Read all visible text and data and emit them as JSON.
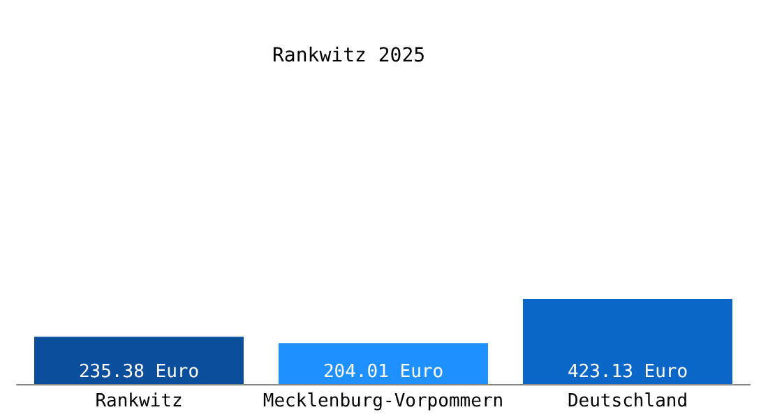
{
  "chart_data": {
    "type": "bar",
    "title": "Rankwitz 2025",
    "categories": [
      "Rankwitz",
      "Mecklenburg-Vorpommern",
      "Deutschland"
    ],
    "values": [
      235.38,
      204.01,
      423.13
    ],
    "colors": [
      "#0b4f9c",
      "#1e90ff",
      "#0a67c8"
    ],
    "value_labels": [
      "235.38 Euro",
      "204.01 Euro",
      "423.13 Euro"
    ]
  }
}
